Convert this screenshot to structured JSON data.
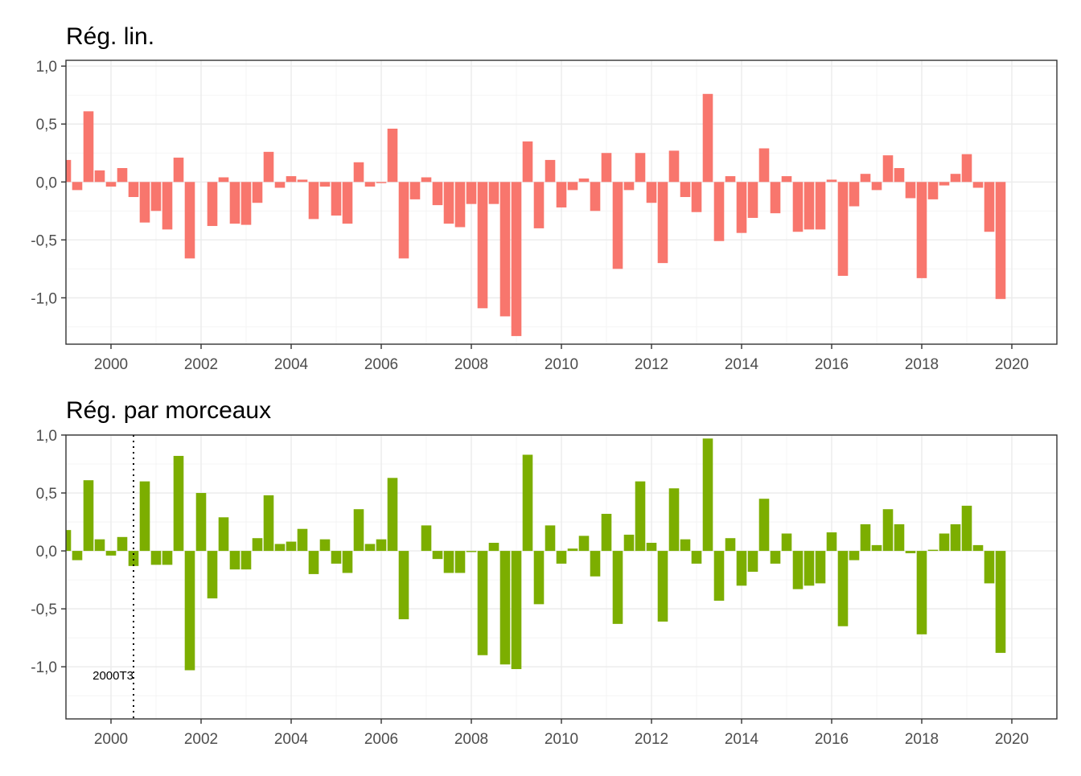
{
  "chart_data": [
    {
      "type": "bar",
      "title": "Rég. lin.",
      "xlabel": "",
      "ylabel": "",
      "color": "#F8766D",
      "xlim": [
        1999.0,
        2021.0
      ],
      "ylim": [
        -1.4,
        1.05
      ],
      "x_ticks": [
        2000,
        2002,
        2004,
        2006,
        2008,
        2010,
        2012,
        2014,
        2016,
        2018,
        2020
      ],
      "x_tick_labels": [
        "2000",
        "2002",
        "2004",
        "2006",
        "2008",
        "2010",
        "2012",
        "2014",
        "2016",
        "2018",
        "2020"
      ],
      "y_ticks": [
        -1.0,
        -0.5,
        0.0,
        0.5,
        1.0
      ],
      "y_tick_labels": [
        "-1,0",
        "-0,5",
        "0,0",
        "0,5",
        "1,0"
      ],
      "grid": true,
      "x_start": 1999.0,
      "x_step": 0.25,
      "values": [
        0.19,
        -0.07,
        0.61,
        0.1,
        -0.04,
        0.12,
        -0.13,
        -0.35,
        -0.25,
        -0.41,
        0.21,
        -0.66,
        0.0,
        -0.38,
        0.04,
        -0.36,
        -0.37,
        -0.18,
        0.26,
        -0.05,
        0.05,
        0.02,
        -0.32,
        -0.04,
        -0.29,
        -0.36,
        0.17,
        -0.04,
        -0.01,
        0.46,
        -0.66,
        -0.15,
        0.04,
        -0.2,
        -0.36,
        -0.39,
        -0.19,
        -1.09,
        -0.19,
        -1.16,
        -1.33,
        0.35,
        -0.4,
        0.19,
        -0.22,
        -0.07,
        0.03,
        -0.25,
        0.25,
        -0.75,
        -0.07,
        0.25,
        -0.18,
        -0.7,
        0.27,
        -0.13,
        -0.26,
        0.76,
        -0.51,
        0.05,
        -0.44,
        -0.31,
        0.29,
        -0.27,
        0.05,
        -0.43,
        -0.41,
        -0.41,
        0.02,
        -0.81,
        -0.21,
        0.07,
        -0.07,
        0.23,
        0.12,
        -0.14,
        -0.83,
        -0.15,
        -0.03,
        0.07,
        0.24,
        -0.05,
        -0.43,
        -1.01
      ]
    },
    {
      "type": "bar",
      "title": "Rég. par morceaux",
      "xlabel": "",
      "ylabel": "",
      "color": "#7CAE00",
      "xlim": [
        1999.0,
        2021.0
      ],
      "ylim": [
        -1.45,
        1.0
      ],
      "x_ticks": [
        2000,
        2002,
        2004,
        2006,
        2008,
        2010,
        2012,
        2014,
        2016,
        2018,
        2020
      ],
      "x_tick_labels": [
        "2000",
        "2002",
        "2004",
        "2006",
        "2008",
        "2010",
        "2012",
        "2014",
        "2016",
        "2018",
        "2020"
      ],
      "y_ticks": [
        -1.0,
        -0.5,
        0.0,
        0.5,
        1.0
      ],
      "y_tick_labels": [
        "-1,0",
        "-0,5",
        "0,0",
        "0,5",
        "1,0"
      ],
      "grid": true,
      "x_start": 1999.0,
      "x_step": 0.25,
      "values": [
        0.18,
        -0.08,
        0.61,
        0.1,
        -0.04,
        0.12,
        -0.13,
        0.6,
        -0.12,
        -0.12,
        0.82,
        -1.03,
        0.5,
        -0.41,
        0.29,
        -0.16,
        -0.16,
        0.11,
        0.48,
        0.06,
        0.08,
        0.19,
        -0.2,
        0.1,
        -0.11,
        -0.19,
        0.36,
        0.06,
        0.1,
        0.63,
        -0.59,
        0.0,
        0.22,
        -0.07,
        -0.19,
        -0.19,
        -0.01,
        -0.9,
        0.07,
        -0.98,
        -1.02,
        0.83,
        -0.46,
        0.22,
        -0.11,
        0.02,
        0.13,
        -0.22,
        0.32,
        -0.63,
        0.14,
        0.6,
        0.07,
        -0.61,
        0.54,
        0.1,
        -0.11,
        0.97,
        -0.43,
        0.11,
        -0.3,
        -0.18,
        0.45,
        -0.11,
        0.15,
        -0.33,
        -0.3,
        -0.28,
        0.16,
        -0.65,
        -0.08,
        0.23,
        0.05,
        0.36,
        0.23,
        -0.02,
        -0.72,
        0.01,
        0.15,
        0.23,
        0.39,
        0.05,
        -0.28,
        -0.88
      ],
      "annotations": [
        {
          "type": "vline",
          "x": 2000.5,
          "style": "dotted",
          "label": "2000T3",
          "label_y": -1.07
        }
      ]
    }
  ]
}
